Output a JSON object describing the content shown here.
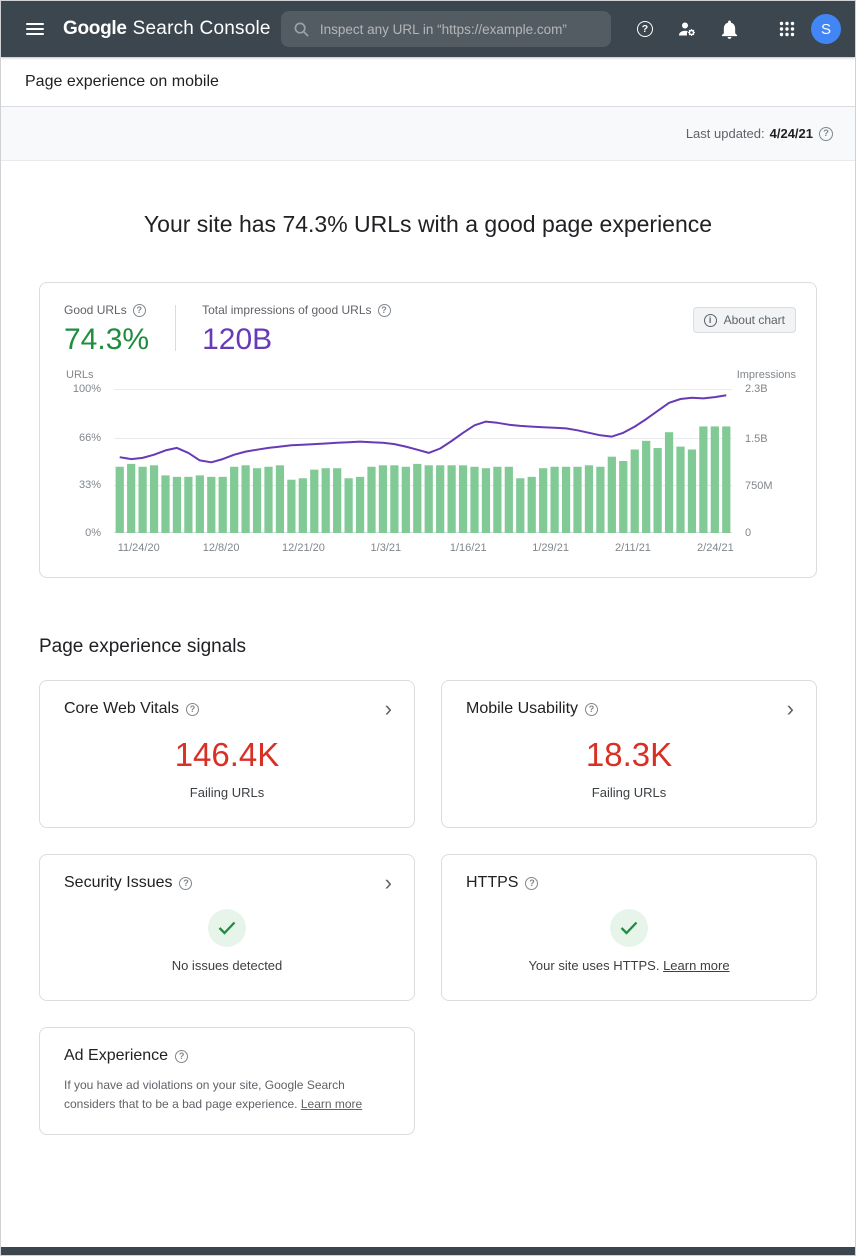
{
  "colors": {
    "header_bg": "#3c464e",
    "accent_green": "#1e8e3e",
    "accent_purple": "#673ab7",
    "bar_green": "#81c995",
    "alert_red": "#d93025",
    "avatar_blue": "#4285f4"
  },
  "header": {
    "logo_google": "Google",
    "logo_product": "Search Console",
    "search_placeholder": "Inspect any URL in “https://example.com”",
    "avatar_letter": "S"
  },
  "breadcrumb": {
    "title": "Page experience on mobile"
  },
  "status_bar": {
    "label": "Last updated:",
    "date": "4/24/21"
  },
  "hero": {
    "title": "Your site has 74.3% URLs with a good page experience"
  },
  "summary": {
    "good_urls_label": "Good URLs",
    "good_urls_value": "74.3%",
    "impressions_label": "Total impressions of good URLs",
    "impressions_value": "120B",
    "about_chart_label": "About chart"
  },
  "chart_data": {
    "type": "bar+line",
    "bar_series": {
      "name": "URLs",
      "unit": "% good URLs",
      "values": [
        46,
        48,
        46,
        47,
        40,
        39,
        39,
        40,
        39,
        39,
        46,
        47,
        45,
        46,
        47,
        37,
        38,
        44,
        45,
        45,
        38,
        39,
        46,
        47,
        47,
        46,
        48,
        47,
        47,
        47,
        47,
        46,
        45,
        46,
        46,
        38,
        39,
        45,
        46,
        46,
        46,
        47,
        46,
        53,
        50,
        58,
        64,
        59,
        70,
        60,
        58,
        74,
        74,
        74
      ]
    },
    "line_series": {
      "name": "Impressions",
      "unit": "B",
      "values": [
        1.21,
        1.18,
        1.2,
        1.25,
        1.32,
        1.36,
        1.28,
        1.16,
        1.13,
        1.18,
        1.25,
        1.3,
        1.33,
        1.36,
        1.38,
        1.4,
        1.41,
        1.42,
        1.43,
        1.44,
        1.45,
        1.46,
        1.45,
        1.44,
        1.42,
        1.38,
        1.33,
        1.28,
        1.35,
        1.47,
        1.6,
        1.72,
        1.78,
        1.76,
        1.73,
        1.71,
        1.7,
        1.69,
        1.68,
        1.67,
        1.64,
        1.6,
        1.56,
        1.54,
        1.6,
        1.7,
        1.82,
        1.95,
        2.08,
        2.14,
        2.16,
        2.15,
        2.17,
        2.2
      ]
    },
    "x_tick_labels": [
      "11/24/20",
      "12/8/20",
      "12/21/20",
      "1/3/21",
      "1/16/21",
      "1/29/21",
      "2/11/21",
      "2/24/21"
    ],
    "left_axis": {
      "label": "URLs",
      "max": 100,
      "ticks": [
        {
          "value": 100,
          "label": "100%"
        },
        {
          "value": 66,
          "label": "66%"
        },
        {
          "value": 33,
          "label": "33%"
        },
        {
          "value": 0,
          "label": "0%"
        }
      ]
    },
    "right_axis": {
      "label": "Impressions",
      "max": 2.3,
      "ticks": [
        {
          "value": 2.3,
          "label": "2.3B"
        },
        {
          "value": 1.5,
          "label": "1.5B"
        },
        {
          "value": 0.75,
          "label": "750M"
        },
        {
          "value": 0,
          "label": "0"
        }
      ]
    },
    "grid": true,
    "legend": "none"
  },
  "signals": {
    "heading": "Page experience signals",
    "cards": {
      "core_web_vitals": {
        "title": "Core Web Vitals",
        "value": "146.4K",
        "caption": "Failing URLs"
      },
      "mobile_usability": {
        "title": "Mobile Usability",
        "value": "18.3K",
        "caption": "Failing URLs"
      },
      "security_issues": {
        "title": "Security Issues",
        "caption": "No issues detected"
      },
      "https": {
        "title": "HTTPS",
        "caption": "Your site uses HTTPS.",
        "link": "Learn more"
      },
      "ad_experience": {
        "title": "Ad Experience",
        "body": "If you have ad violations on your site, Google Search considers that to be a bad page experience.",
        "link": "Learn more"
      }
    }
  }
}
